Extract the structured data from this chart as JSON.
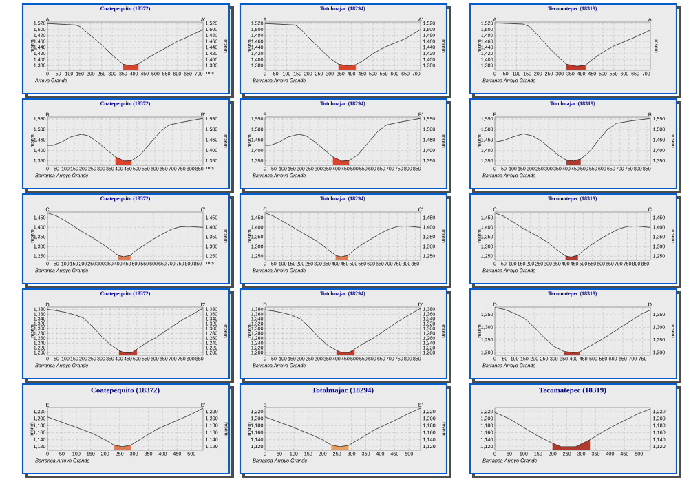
{
  "chart_data": [
    {
      "type": "line",
      "title": "Coatepequito (18372)",
      "xlabel": "mts",
      "ylabel": "msnm",
      "y2label": "msnm",
      "annotations": [
        "A",
        "A'",
        "Arroyo Grande"
      ],
      "grid": true,
      "xlim": [
        0,
        720
      ],
      "ylim": [
        1365,
        1525
      ],
      "y2lim": [
        1365,
        1525
      ],
      "xticks": [
        0,
        50,
        100,
        150,
        200,
        250,
        300,
        350,
        400,
        450,
        500,
        550,
        600,
        650,
        700
      ],
      "yticks": [
        {
          "value": 1380,
          "label": "1,380"
        },
        {
          "value": 1400,
          "label": "1,400"
        },
        {
          "value": 1420,
          "label": "1,420"
        },
        {
          "value": 1440,
          "label": "1,440"
        },
        {
          "value": 1460,
          "label": "1,460"
        },
        {
          "value": 1480,
          "label": "1,480"
        },
        {
          "value": 1500,
          "label": "1,500"
        },
        {
          "value": 1520,
          "label": "1,520"
        }
      ],
      "y2ticks": [
        {
          "value": 1380,
          "label": "1,380"
        },
        {
          "value": 1400,
          "label": "1,400"
        },
        {
          "value": 1420,
          "label": "1,420"
        },
        {
          "value": 1440,
          "label": "1,440"
        },
        {
          "value": 1460,
          "label": "1,460"
        },
        {
          "value": 1480,
          "label": "1,480"
        },
        {
          "value": 1500,
          "label": "1,500"
        },
        {
          "value": 1520,
          "label": "1,520"
        }
      ],
      "series": [
        {
          "type": "area",
          "color": "#d9442c",
          "x": [
            350,
            380,
            420
          ],
          "values": [
            1385,
            1380,
            1385
          ]
        },
        {
          "type": "line",
          "color": "#222222",
          "x": [
            0,
            50,
            130,
            150,
            200,
            250,
            300,
            350,
            380,
            420,
            450,
            500,
            550,
            600,
            650,
            720
          ],
          "values": [
            1520,
            1518,
            1515,
            1510,
            1480,
            1450,
            1415,
            1385,
            1380,
            1385,
            1400,
            1420,
            1440,
            1460,
            1476,
            1500
          ]
        }
      ]
    },
    {
      "type": "line",
      "title": "Totolmajac (18294)",
      "ylabel": "msnm",
      "y2label": "msnm",
      "annotations": [
        "A",
        "A'",
        "Barranca Arroyo Grande"
      ],
      "grid": true,
      "xlim": [
        0,
        720
      ],
      "ylim": [
        1365,
        1525
      ],
      "y2lim": [
        1365,
        1525
      ],
      "xticks": [
        0,
        50,
        100,
        150,
        200,
        250,
        300,
        350,
        400,
        450,
        500,
        550,
        600,
        650,
        700
      ],
      "yticks": [
        {
          "value": 1380,
          "label": "1,380"
        },
        {
          "value": 1400,
          "label": "1,400"
        },
        {
          "value": 1420,
          "label": "1,420"
        },
        {
          "value": 1440,
          "label": "1,440"
        },
        {
          "value": 1460,
          "label": "1,460"
        },
        {
          "value": 1480,
          "label": "1,480"
        },
        {
          "value": 1500,
          "label": "1,500"
        },
        {
          "value": 1520,
          "label": "1,520"
        }
      ],
      "y2ticks": [
        {
          "value": 1380,
          "label": "1,380"
        },
        {
          "value": 1400,
          "label": "1,400"
        },
        {
          "value": 1420,
          "label": "1,420"
        },
        {
          "value": 1440,
          "label": "1,440"
        },
        {
          "value": 1460,
          "label": "1,460"
        },
        {
          "value": 1480,
          "label": "1,480"
        },
        {
          "value": 1500,
          "label": "1,500"
        },
        {
          "value": 1520,
          "label": "1,520"
        }
      ],
      "series": [
        {
          "type": "area",
          "color": "#d9442c",
          "x": [
            340,
            380,
            420
          ],
          "values": [
            1385,
            1380,
            1383
          ]
        },
        {
          "type": "line",
          "color": "#222222",
          "x": [
            0,
            140,
            160,
            200,
            250,
            300,
            340,
            380,
            420,
            450,
            500,
            550,
            600,
            650,
            720
          ],
          "values": [
            1520,
            1515,
            1505,
            1475,
            1440,
            1405,
            1385,
            1380,
            1383,
            1395,
            1420,
            1440,
            1455,
            1470,
            1500
          ]
        }
      ]
    },
    {
      "type": "line",
      "title": "Tecomatepec (18319)",
      "ylabel": "msnm",
      "y2label": "msnm",
      "annotations": [
        "A",
        "A'",
        "Barranca Arroyo Grande"
      ],
      "grid": true,
      "xlim": [
        0,
        720
      ],
      "ylim": [
        1365,
        1525
      ],
      "xticks": [
        0,
        50,
        100,
        150,
        200,
        250,
        300,
        350,
        400,
        450,
        500,
        550,
        600,
        650,
        700
      ],
      "yticks": [
        {
          "value": 1380,
          "label": "1,380"
        },
        {
          "value": 1400,
          "label": "1,400"
        },
        {
          "value": 1420,
          "label": "1,420"
        },
        {
          "value": 1440,
          "label": "1,440"
        },
        {
          "value": 1460,
          "label": "1,460"
        },
        {
          "value": 1480,
          "label": "1,480"
        },
        {
          "value": 1500,
          "label": "1,500"
        },
        {
          "value": 1520,
          "label": "1,520"
        }
      ],
      "series": [
        {
          "type": "area",
          "color": "#c0392b",
          "x": [
            330,
            380,
            420
          ],
          "values": [
            1385,
            1378,
            1382
          ]
        },
        {
          "type": "line",
          "color": "#222222",
          "x": [
            0,
            130,
            160,
            200,
            250,
            300,
            330,
            380,
            420,
            450,
            500,
            550,
            600,
            650,
            720
          ],
          "values": [
            1522,
            1518,
            1510,
            1480,
            1440,
            1405,
            1385,
            1378,
            1382,
            1400,
            1425,
            1445,
            1460,
            1475,
            1498
          ]
        }
      ]
    },
    {
      "type": "line",
      "title": "Coatepequito (18372)",
      "xlabel": "mts",
      "ylabel": "msnm",
      "y2label": "msnm",
      "annotations": [
        "B",
        "B'",
        "Barranca Arroyo Grande"
      ],
      "grid": true,
      "xlim": [
        0,
        870
      ],
      "ylim": [
        1330,
        1560
      ],
      "y2lim": [
        1330,
        1560
      ],
      "xticks": [
        0,
        50,
        100,
        150,
        200,
        250,
        300,
        350,
        400,
        450,
        500,
        550,
        600,
        650,
        700,
        750,
        800,
        850
      ],
      "yticks": [
        {
          "value": 1350,
          "label": "1,350"
        },
        {
          "value": 1400,
          "label": "1,400"
        },
        {
          "value": 1450,
          "label": "1,450"
        },
        {
          "value": 1500,
          "label": "1,500"
        },
        {
          "value": 1550,
          "label": "1,550"
        }
      ],
      "y2ticks": [
        {
          "value": 1350,
          "label": "1,350"
        },
        {
          "value": 1400,
          "label": "1,400"
        },
        {
          "value": 1450,
          "label": "1,450"
        },
        {
          "value": 1500,
          "label": "1,500"
        },
        {
          "value": 1550,
          "label": "1,550"
        }
      ],
      "series": [
        {
          "type": "area",
          "color": "#d9442c",
          "x": [
            380,
            430,
            470
          ],
          "values": [
            1370,
            1350,
            1352
          ]
        },
        {
          "type": "line",
          "color": "#222222",
          "x": [
            0,
            30,
            80,
            130,
            190,
            230,
            280,
            330,
            380,
            430,
            470,
            520,
            580,
            630,
            680,
            750,
            870
          ],
          "values": [
            1425,
            1425,
            1440,
            1465,
            1478,
            1470,
            1440,
            1405,
            1370,
            1350,
            1352,
            1380,
            1440,
            1490,
            1522,
            1535,
            1553
          ]
        }
      ]
    },
    {
      "type": "line",
      "title": "Totolmajac (18294)",
      "ylabel": "msnm",
      "y2label": "msnm",
      "annotations": [
        "B",
        "B'",
        "Barranca Arroyo Grande"
      ],
      "grid": true,
      "xlim": [
        0,
        870
      ],
      "ylim": [
        1330,
        1560
      ],
      "y2lim": [
        1330,
        1560
      ],
      "xticks": [
        0,
        50,
        100,
        150,
        200,
        250,
        300,
        350,
        400,
        450,
        500,
        550,
        600,
        650,
        700,
        750,
        800,
        850
      ],
      "yticks": [
        {
          "value": 1350,
          "label": "1,350"
        },
        {
          "value": 1400,
          "label": "1,400"
        },
        {
          "value": 1450,
          "label": "1,450"
        },
        {
          "value": 1500,
          "label": "1,500"
        },
        {
          "value": 1550,
          "label": "1,550"
        }
      ],
      "y2ticks": [
        {
          "value": 1350,
          "label": "1,350"
        },
        {
          "value": 1400,
          "label": "1,400"
        },
        {
          "value": 1450,
          "label": "1,450"
        },
        {
          "value": 1500,
          "label": "1,500"
        },
        {
          "value": 1550,
          "label": "1,550"
        }
      ],
      "series": [
        {
          "type": "area",
          "color": "#d9442c",
          "x": [
            380,
            430,
            470
          ],
          "values": [
            1370,
            1350,
            1352
          ]
        },
        {
          "type": "line",
          "color": "#222222",
          "x": [
            0,
            30,
            80,
            130,
            190,
            230,
            280,
            330,
            380,
            430,
            470,
            520,
            580,
            630,
            680,
            750,
            870
          ],
          "values": [
            1425,
            1425,
            1440,
            1465,
            1478,
            1470,
            1440,
            1405,
            1370,
            1350,
            1352,
            1380,
            1440,
            1490,
            1522,
            1535,
            1553
          ]
        }
      ]
    },
    {
      "type": "line",
      "title": "Totolmajac (18319)",
      "ylabel": "msnm",
      "y2label": "msnm",
      "annotations": [
        "B",
        "B'",
        "Barranca Arroyo Grande"
      ],
      "grid": true,
      "xlim": [
        0,
        870
      ],
      "ylim": [
        1330,
        1560
      ],
      "y2lim": [
        1330,
        1560
      ],
      "xticks": [
        0,
        50,
        100,
        150,
        200,
        250,
        300,
        350,
        400,
        450,
        500,
        550,
        600,
        650,
        700,
        750,
        800,
        850
      ],
      "yticks": [
        {
          "value": 1350,
          "label": "1,350"
        },
        {
          "value": 1400,
          "label": "1,400"
        },
        {
          "value": 1450,
          "label": "1,450"
        },
        {
          "value": 1500,
          "label": "1,500"
        },
        {
          "value": 1550,
          "label": "1,550"
        }
      ],
      "y2ticks": [
        {
          "value": 1350,
          "label": "1,350"
        },
        {
          "value": 1400,
          "label": "1,400"
        },
        {
          "value": 1450,
          "label": "1,450"
        },
        {
          "value": 1500,
          "label": "1,500"
        },
        {
          "value": 1550,
          "label": "1,550"
        }
      ],
      "series": [
        {
          "type": "area",
          "color": "#b03a2e",
          "x": [
            400,
            440,
            480
          ],
          "values": [
            1355,
            1350,
            1360
          ]
        },
        {
          "type": "line",
          "color": "#222222",
          "x": [
            0,
            50,
            100,
            160,
            210,
            260,
            310,
            360,
            400,
            440,
            480,
            530,
            580,
            630,
            680,
            750,
            870
          ],
          "values": [
            1440,
            1448,
            1465,
            1480,
            1470,
            1445,
            1410,
            1375,
            1355,
            1350,
            1360,
            1395,
            1450,
            1500,
            1530,
            1540,
            1553
          ]
        }
      ]
    },
    {
      "type": "line",
      "title": "Coatepequito (18372)",
      "xlabel": "mts",
      "ylabel": "msnm",
      "y2label": "msnm",
      "annotations": [
        "C",
        "C'",
        "Barranca Arroyo Grande"
      ],
      "grid": true,
      "xlim": [
        0,
        880
      ],
      "ylim": [
        1230,
        1480
      ],
      "y2lim": [
        1230,
        1480
      ],
      "xticks": [
        0,
        50,
        100,
        150,
        200,
        250,
        300,
        350,
        400,
        450,
        500,
        550,
        600,
        650,
        700,
        750,
        800,
        850
      ],
      "yticks": [
        {
          "value": 1250,
          "label": "1,250"
        },
        {
          "value": 1300,
          "label": "1,300"
        },
        {
          "value": 1350,
          "label": "1,350"
        },
        {
          "value": 1400,
          "label": "1,400"
        },
        {
          "value": 1450,
          "label": "1,450"
        }
      ],
      "y2ticks": [
        {
          "value": 1250,
          "label": "1,250"
        },
        {
          "value": 1300,
          "label": "1,300"
        },
        {
          "value": 1350,
          "label": "1,350"
        },
        {
          "value": 1400,
          "label": "1,400"
        },
        {
          "value": 1450,
          "label": "1,450"
        }
      ],
      "series": [
        {
          "type": "area",
          "color": "#e07b50",
          "x": [
            400,
            430,
            470
          ],
          "values": [
            1255,
            1248,
            1255
          ]
        },
        {
          "type": "line",
          "color": "#222222",
          "x": [
            0,
            50,
            100,
            150,
            200,
            250,
            300,
            350,
            400,
            430,
            470,
            500,
            550,
            600,
            650,
            700,
            750,
            800,
            880
          ],
          "values": [
            1475,
            1460,
            1435,
            1405,
            1375,
            1350,
            1320,
            1290,
            1255,
            1248,
            1255,
            1280,
            1310,
            1340,
            1365,
            1390,
            1403,
            1405,
            1400
          ]
        }
      ]
    },
    {
      "type": "line",
      "title": "Totolmajac (18294)",
      "ylabel": "msnm",
      "y2label": "msnm",
      "annotations": [
        "C",
        "C'",
        "Barranca Arroyo Grande"
      ],
      "grid": true,
      "xlim": [
        0,
        880
      ],
      "ylim": [
        1230,
        1480
      ],
      "y2lim": [
        1230,
        1480
      ],
      "xticks": [
        0,
        50,
        100,
        150,
        200,
        250,
        300,
        350,
        400,
        450,
        500,
        550,
        600,
        650,
        700,
        750,
        800,
        850
      ],
      "yticks": [
        {
          "value": 1250,
          "label": "1,250"
        },
        {
          "value": 1300,
          "label": "1,300"
        },
        {
          "value": 1350,
          "label": "1,350"
        },
        {
          "value": 1400,
          "label": "1,400"
        },
        {
          "value": 1450,
          "label": "1,450"
        }
      ],
      "y2ticks": [
        {
          "value": 1250,
          "label": "1,250"
        },
        {
          "value": 1300,
          "label": "1,300"
        },
        {
          "value": 1350,
          "label": "1,350"
        },
        {
          "value": 1400,
          "label": "1,400"
        },
        {
          "value": 1450,
          "label": "1,450"
        }
      ],
      "series": [
        {
          "type": "area",
          "color": "#e07b50",
          "x": [
            400,
            430,
            470
          ],
          "values": [
            1255,
            1247,
            1255
          ]
        },
        {
          "type": "line",
          "color": "#222222",
          "x": [
            0,
            50,
            100,
            150,
            200,
            250,
            300,
            350,
            400,
            430,
            470,
            500,
            550,
            600,
            650,
            700,
            750,
            800,
            880
          ],
          "values": [
            1475,
            1458,
            1432,
            1405,
            1378,
            1352,
            1325,
            1290,
            1255,
            1247,
            1255,
            1280,
            1312,
            1340,
            1367,
            1390,
            1405,
            1407,
            1400
          ]
        }
      ]
    },
    {
      "type": "line",
      "title": "Tecomatepec (18319)",
      "ylabel": "msnm",
      "y2label": "msnm",
      "annotations": [
        "C",
        "C'",
        "Barranca Arroyo Grande"
      ],
      "grid": true,
      "xlim": [
        0,
        880
      ],
      "ylim": [
        1230,
        1480
      ],
      "y2lim": [
        1230,
        1480
      ],
      "xticks": [
        0,
        50,
        100,
        150,
        200,
        250,
        300,
        350,
        400,
        450,
        500,
        550,
        600,
        650,
        700,
        750,
        800,
        850
      ],
      "yticks": [
        {
          "value": 1250,
          "label": "1,250"
        },
        {
          "value": 1300,
          "label": "1,300"
        },
        {
          "value": 1350,
          "label": "1,350"
        },
        {
          "value": 1400,
          "label": "1,400"
        },
        {
          "value": 1450,
          "label": "1,450"
        }
      ],
      "y2ticks": [
        {
          "value": 1250,
          "label": "1,250"
        },
        {
          "value": 1300,
          "label": "1,300"
        },
        {
          "value": 1350,
          "label": "1,350"
        },
        {
          "value": 1400,
          "label": "1,400"
        },
        {
          "value": 1450,
          "label": "1,450"
        }
      ],
      "series": [
        {
          "type": "area",
          "color": "#b03a2e",
          "x": [
            400,
            430,
            470
          ],
          "values": [
            1252,
            1246,
            1255
          ]
        },
        {
          "type": "line",
          "color": "#222222",
          "x": [
            0,
            50,
            100,
            150,
            200,
            250,
            300,
            350,
            400,
            430,
            470,
            500,
            550,
            600,
            650,
            700,
            750,
            800,
            880
          ],
          "values": [
            1475,
            1458,
            1430,
            1400,
            1375,
            1350,
            1322,
            1285,
            1252,
            1246,
            1255,
            1280,
            1312,
            1342,
            1368,
            1392,
            1405,
            1407,
            1400
          ]
        }
      ]
    },
    {
      "type": "line",
      "title": "Coatepequito (18372)",
      "ylabel": "msnm",
      "y2label": "msnm",
      "annotations": [
        "D",
        "D'",
        "Barranca Arroyo Grande"
      ],
      "grid": true,
      "xlim": [
        0,
        870
      ],
      "ylim": [
        1190,
        1390
      ],
      "y2lim": [
        1190,
        1390
      ],
      "xticks": [
        0,
        50,
        100,
        150,
        200,
        250,
        300,
        350,
        400,
        450,
        500,
        550,
        600,
        650,
        700,
        750,
        800,
        850
      ],
      "yticks": [
        {
          "value": 1200,
          "label": "1,200"
        },
        {
          "value": 1220,
          "label": "1,220"
        },
        {
          "value": 1240,
          "label": "1,240"
        },
        {
          "value": 1260,
          "label": "1,260"
        },
        {
          "value": 1280,
          "label": "1,280"
        },
        {
          "value": 1300,
          "label": "1,300"
        },
        {
          "value": 1320,
          "label": "1,320"
        },
        {
          "value": 1340,
          "label": "1,340"
        },
        {
          "value": 1360,
          "label": "1,360"
        },
        {
          "value": 1380,
          "label": "1,380"
        }
      ],
      "y2ticks": [
        {
          "value": 1200,
          "label": "1,200"
        },
        {
          "value": 1220,
          "label": "1,220"
        },
        {
          "value": 1240,
          "label": "1,240"
        },
        {
          "value": 1260,
          "label": "1,260"
        },
        {
          "value": 1280,
          "label": "1,280"
        },
        {
          "value": 1300,
          "label": "1,300"
        },
        {
          "value": 1320,
          "label": "1,320"
        },
        {
          "value": 1340,
          "label": "1,340"
        },
        {
          "value": 1360,
          "label": "1,360"
        },
        {
          "value": 1380,
          "label": "1,380"
        }
      ],
      "series": [
        {
          "type": "area",
          "color": "#c0392b",
          "x": [
            400,
            430,
            470,
            500
          ],
          "values": [
            1210,
            1200,
            1200,
            1215
          ]
        },
        {
          "type": "line",
          "color": "#222222",
          "x": [
            0,
            50,
            100,
            150,
            200,
            250,
            300,
            350,
            400,
            430,
            470,
            500,
            550,
            600,
            650,
            700,
            750,
            800,
            870
          ],
          "values": [
            1380,
            1375,
            1368,
            1358,
            1345,
            1310,
            1270,
            1235,
            1210,
            1200,
            1200,
            1215,
            1240,
            1260,
            1285,
            1310,
            1335,
            1355,
            1385
          ]
        }
      ]
    },
    {
      "type": "line",
      "title": "Totolmajac (18294)",
      "ylabel": "msnm",
      "y2label": "msnm",
      "annotations": [
        "D",
        "D'",
        "Barranca Arroyo Grande"
      ],
      "grid": true,
      "xlim": [
        0,
        870
      ],
      "ylim": [
        1190,
        1390
      ],
      "y2lim": [
        1190,
        1390
      ],
      "xticks": [
        0,
        50,
        100,
        150,
        200,
        250,
        300,
        350,
        400,
        450,
        500,
        550,
        600,
        650,
        700,
        750,
        800,
        850
      ],
      "yticks": [
        {
          "value": 1200,
          "label": "1,200"
        },
        {
          "value": 1220,
          "label": "1,220"
        },
        {
          "value": 1240,
          "label": "1,240"
        },
        {
          "value": 1260,
          "label": "1,260"
        },
        {
          "value": 1280,
          "label": "1,280"
        },
        {
          "value": 1300,
          "label": "1,300"
        },
        {
          "value": 1320,
          "label": "1,320"
        },
        {
          "value": 1340,
          "label": "1,340"
        },
        {
          "value": 1360,
          "label": "1,360"
        },
        {
          "value": 1380,
          "label": "1,380"
        }
      ],
      "y2ticks": [
        {
          "value": 1200,
          "label": "1,200"
        },
        {
          "value": 1220,
          "label": "1,220"
        },
        {
          "value": 1240,
          "label": "1,240"
        },
        {
          "value": 1260,
          "label": "1,260"
        },
        {
          "value": 1280,
          "label": "1,280"
        },
        {
          "value": 1300,
          "label": "1,300"
        },
        {
          "value": 1320,
          "label": "1,320"
        },
        {
          "value": 1340,
          "label": "1,340"
        },
        {
          "value": 1360,
          "label": "1,360"
        },
        {
          "value": 1380,
          "label": "1,380"
        }
      ],
      "series": [
        {
          "type": "area",
          "color": "#c0392b",
          "x": [
            400,
            430,
            470,
            500
          ],
          "values": [
            1210,
            1201,
            1201,
            1215
          ]
        },
        {
          "type": "line",
          "color": "#222222",
          "x": [
            0,
            50,
            100,
            150,
            200,
            250,
            300,
            350,
            400,
            430,
            470,
            500,
            550,
            600,
            650,
            700,
            750,
            800,
            870
          ],
          "values": [
            1378,
            1373,
            1366,
            1356,
            1340,
            1305,
            1265,
            1232,
            1210,
            1201,
            1201,
            1215,
            1238,
            1258,
            1282,
            1308,
            1332,
            1355,
            1384
          ]
        }
      ]
    },
    {
      "type": "line",
      "title": "Tecomatepec (18319)",
      "ylabel": "msnm",
      "y2label": "msnm",
      "annotations": [
        "D",
        "D'",
        "Barranca Arroyo Grande"
      ],
      "grid": true,
      "xlim": [
        0,
        790
      ],
      "ylim": [
        1190,
        1380
      ],
      "y2lim": [
        1190,
        1380
      ],
      "xticks": [
        0,
        50,
        100,
        150,
        200,
        250,
        300,
        350,
        400,
        450,
        500,
        550,
        600,
        650,
        700,
        750
      ],
      "yticks": [
        {
          "value": 1200,
          "label": "1,200"
        },
        {
          "value": 1250,
          "label": "1,250"
        },
        {
          "value": 1300,
          "label": "1,300"
        },
        {
          "value": 1350,
          "label": "1,350"
        }
      ],
      "y2ticks": [
        {
          "value": 1200,
          "label": "1,200"
        },
        {
          "value": 1250,
          "label": "1,250"
        },
        {
          "value": 1300,
          "label": "1,300"
        },
        {
          "value": 1350,
          "label": "1,350"
        }
      ],
      "series": [
        {
          "type": "area",
          "color": "#b03a2e",
          "x": [
            350,
            400,
            430
          ],
          "values": [
            1205,
            1200,
            1203
          ]
        },
        {
          "type": "line",
          "color": "#222222",
          "x": [
            0,
            50,
            100,
            150,
            200,
            250,
            300,
            350,
            400,
            430,
            480,
            550,
            600,
            650,
            700,
            750,
            790
          ],
          "values": [
            1378,
            1370,
            1355,
            1335,
            1300,
            1260,
            1225,
            1205,
            1200,
            1203,
            1225,
            1255,
            1280,
            1305,
            1330,
            1355,
            1368
          ]
        }
      ]
    },
    {
      "type": "line",
      "title": "Coatepequito (18372)",
      "ylabel": "msnm",
      "y2label": "msnm",
      "annotations": [
        "E",
        "E'",
        "Barranca Arroyo Grande"
      ],
      "grid": true,
      "xlim": [
        0,
        540
      ],
      "ylim": [
        1110,
        1232
      ],
      "y2lim": [
        1110,
        1232
      ],
      "xticks": [
        0,
        50,
        100,
        150,
        200,
        250,
        300,
        350,
        400,
        450,
        500
      ],
      "yticks": [
        {
          "value": 1120,
          "label": "1,120"
        },
        {
          "value": 1140,
          "label": "1,140"
        },
        {
          "value": 1160,
          "label": "1,160"
        },
        {
          "value": 1180,
          "label": "1,180"
        },
        {
          "value": 1200,
          "label": "1,200"
        },
        {
          "value": 1220,
          "label": "1,220"
        }
      ],
      "y2ticks": [
        {
          "value": 1120,
          "label": "1,120"
        },
        {
          "value": 1140,
          "label": "1,140"
        },
        {
          "value": 1160,
          "label": "1,160"
        },
        {
          "value": 1180,
          "label": "1,180"
        },
        {
          "value": 1200,
          "label": "1,200"
        },
        {
          "value": 1220,
          "label": "1,220"
        }
      ],
      "series": [
        {
          "type": "area",
          "color": "#e07b50",
          "x": [
            230,
            260,
            290
          ],
          "values": [
            1125,
            1120,
            1125
          ]
        },
        {
          "type": "line",
          "color": "#222222",
          "x": [
            0,
            50,
            100,
            150,
            200,
            230,
            260,
            290,
            330,
            380,
            450,
            500,
            540
          ],
          "values": [
            1205,
            1190,
            1175,
            1160,
            1140,
            1125,
            1120,
            1125,
            1145,
            1170,
            1195,
            1213,
            1230
          ]
        }
      ]
    },
    {
      "type": "line",
      "title": "Totolmajac (18294)",
      "ylabel": "msnm",
      "y2label": "msnm",
      "annotations": [
        "E",
        "E'",
        "Barranca Arroyo Grande"
      ],
      "grid": true,
      "xlim": [
        0,
        540
      ],
      "ylim": [
        1110,
        1232
      ],
      "y2lim": [
        1110,
        1232
      ],
      "xticks": [
        0,
        50,
        100,
        150,
        200,
        250,
        300,
        350,
        400,
        450,
        500
      ],
      "yticks": [
        {
          "value": 1120,
          "label": "1,120"
        },
        {
          "value": 1140,
          "label": "1,140"
        },
        {
          "value": 1160,
          "label": "1,160"
        },
        {
          "value": 1180,
          "label": "1,180"
        },
        {
          "value": 1200,
          "label": "1,200"
        },
        {
          "value": 1220,
          "label": "1,220"
        }
      ],
      "y2ticks": [
        {
          "value": 1120,
          "label": "1,120"
        },
        {
          "value": 1140,
          "label": "1,140"
        },
        {
          "value": 1160,
          "label": "1,160"
        },
        {
          "value": 1180,
          "label": "1,180"
        },
        {
          "value": 1200,
          "label": "1,200"
        },
        {
          "value": 1220,
          "label": "1,220"
        }
      ],
      "series": [
        {
          "type": "area",
          "color": "#e8a060",
          "x": [
            230,
            260,
            290
          ],
          "values": [
            1125,
            1120,
            1124
          ]
        },
        {
          "type": "line",
          "color": "#222222",
          "x": [
            0,
            50,
            100,
            150,
            200,
            230,
            260,
            290,
            330,
            380,
            450,
            500,
            540
          ],
          "values": [
            1205,
            1190,
            1175,
            1158,
            1140,
            1125,
            1120,
            1124,
            1143,
            1168,
            1195,
            1215,
            1230
          ]
        }
      ]
    },
    {
      "type": "line",
      "title": "Tecomatepec (18319)",
      "annotations": [
        "Barranca Arroyo Grande"
      ],
      "grid": true,
      "xlim": [
        0,
        540
      ],
      "ylim": [
        1110,
        1232
      ],
      "y2lim": [
        1110,
        1232
      ],
      "xticks": [
        0,
        50,
        100,
        150,
        200,
        250,
        300,
        350,
        400,
        450,
        500
      ],
      "yticks": [
        {
          "value": 1120,
          "label": "1,120"
        },
        {
          "value": 1140,
          "label": "1,140"
        },
        {
          "value": 1160,
          "label": "1,160"
        },
        {
          "value": 1180,
          "label": "1,180"
        },
        {
          "value": 1200,
          "label": "1,200"
        },
        {
          "value": 1220,
          "label": "1,220"
        }
      ],
      "y2ticks": [
        {
          "value": 1120,
          "label": "1,120"
        },
        {
          "value": 1140,
          "label": "1,140"
        },
        {
          "value": 1160,
          "label": "1,160"
        },
        {
          "value": 1180,
          "label": "1,180"
        },
        {
          "value": 1200,
          "label": "1,200"
        },
        {
          "value": 1220,
          "label": "1,220"
        }
      ],
      "series": [
        {
          "type": "area",
          "color": "#b03a2e",
          "x": [
            200,
            230,
            280,
            330
          ],
          "values": [
            1130,
            1120,
            1120,
            1140
          ]
        },
        {
          "type": "line",
          "color": "#222222",
          "x": [
            0,
            50,
            100,
            150,
            200,
            230,
            280,
            330,
            380,
            450,
            500,
            540
          ],
          "values": [
            1218,
            1200,
            1175,
            1150,
            1130,
            1120,
            1120,
            1140,
            1165,
            1195,
            1215,
            1228
          ]
        }
      ]
    }
  ]
}
